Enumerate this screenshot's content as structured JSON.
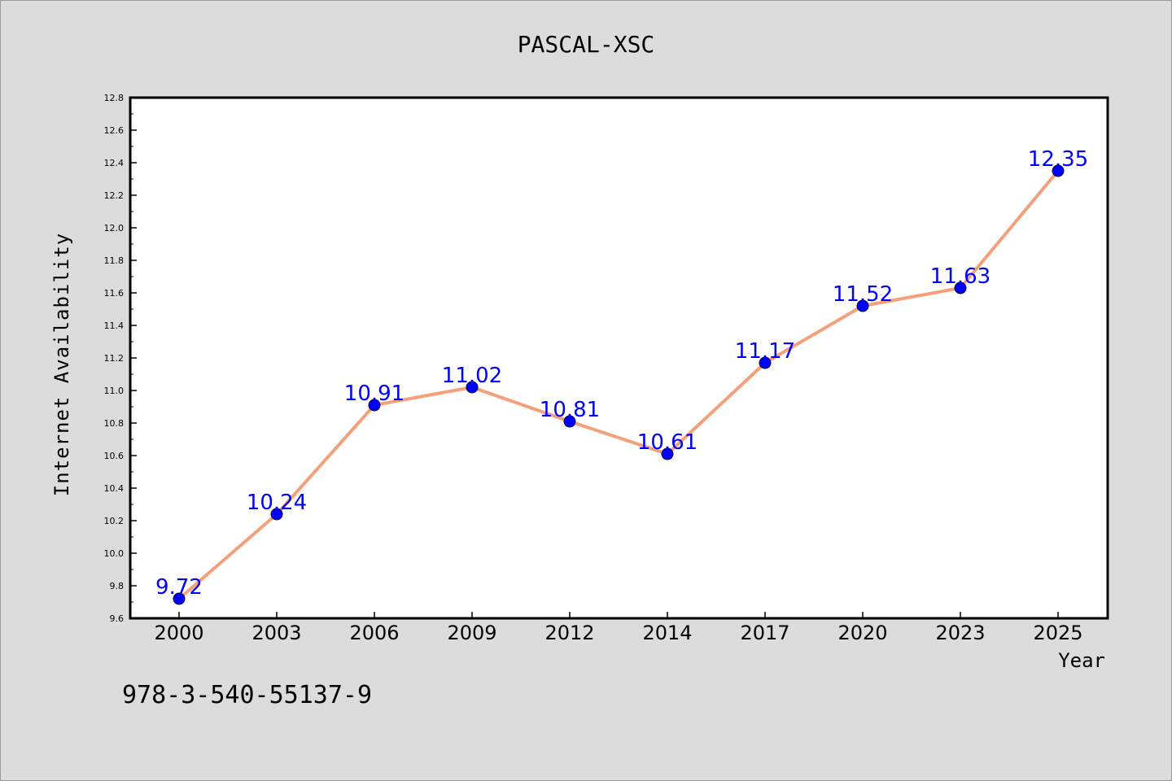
{
  "chart_data": {
    "type": "line",
    "title": "PASCAL-XSC",
    "xlabel": "Year",
    "ylabel": "Internet Availability",
    "categories": [
      "2000",
      "2003",
      "2006",
      "2009",
      "2012",
      "2014",
      "2017",
      "2020",
      "2023",
      "2025"
    ],
    "series": [
      {
        "values": [
          9.72,
          10.24,
          10.91,
          11.02,
          10.81,
          10.61,
          11.17,
          11.52,
          11.63,
          12.35
        ],
        "line_color": "#f4a07a",
        "marker_color": "#0000ff"
      }
    ],
    "data_labels": [
      "9.72",
      "10.24",
      "10.91",
      "11.02",
      "10.81",
      "10.61",
      "11.17",
      "11.52",
      "11.63",
      "12.35"
    ],
    "yticks": [
      "9.6",
      "9.8",
      "10.0",
      "10.2",
      "10.4",
      "10.6",
      "10.8",
      "11.0",
      "11.2",
      "11.4",
      "11.6",
      "11.8",
      "12.0",
      "12.2",
      "12.4",
      "12.6",
      "12.8"
    ],
    "ylim": [
      9.6,
      12.8
    ],
    "grid": false,
    "legend": "none"
  },
  "footer": {
    "isbn": "978-3-540-55137-9"
  }
}
